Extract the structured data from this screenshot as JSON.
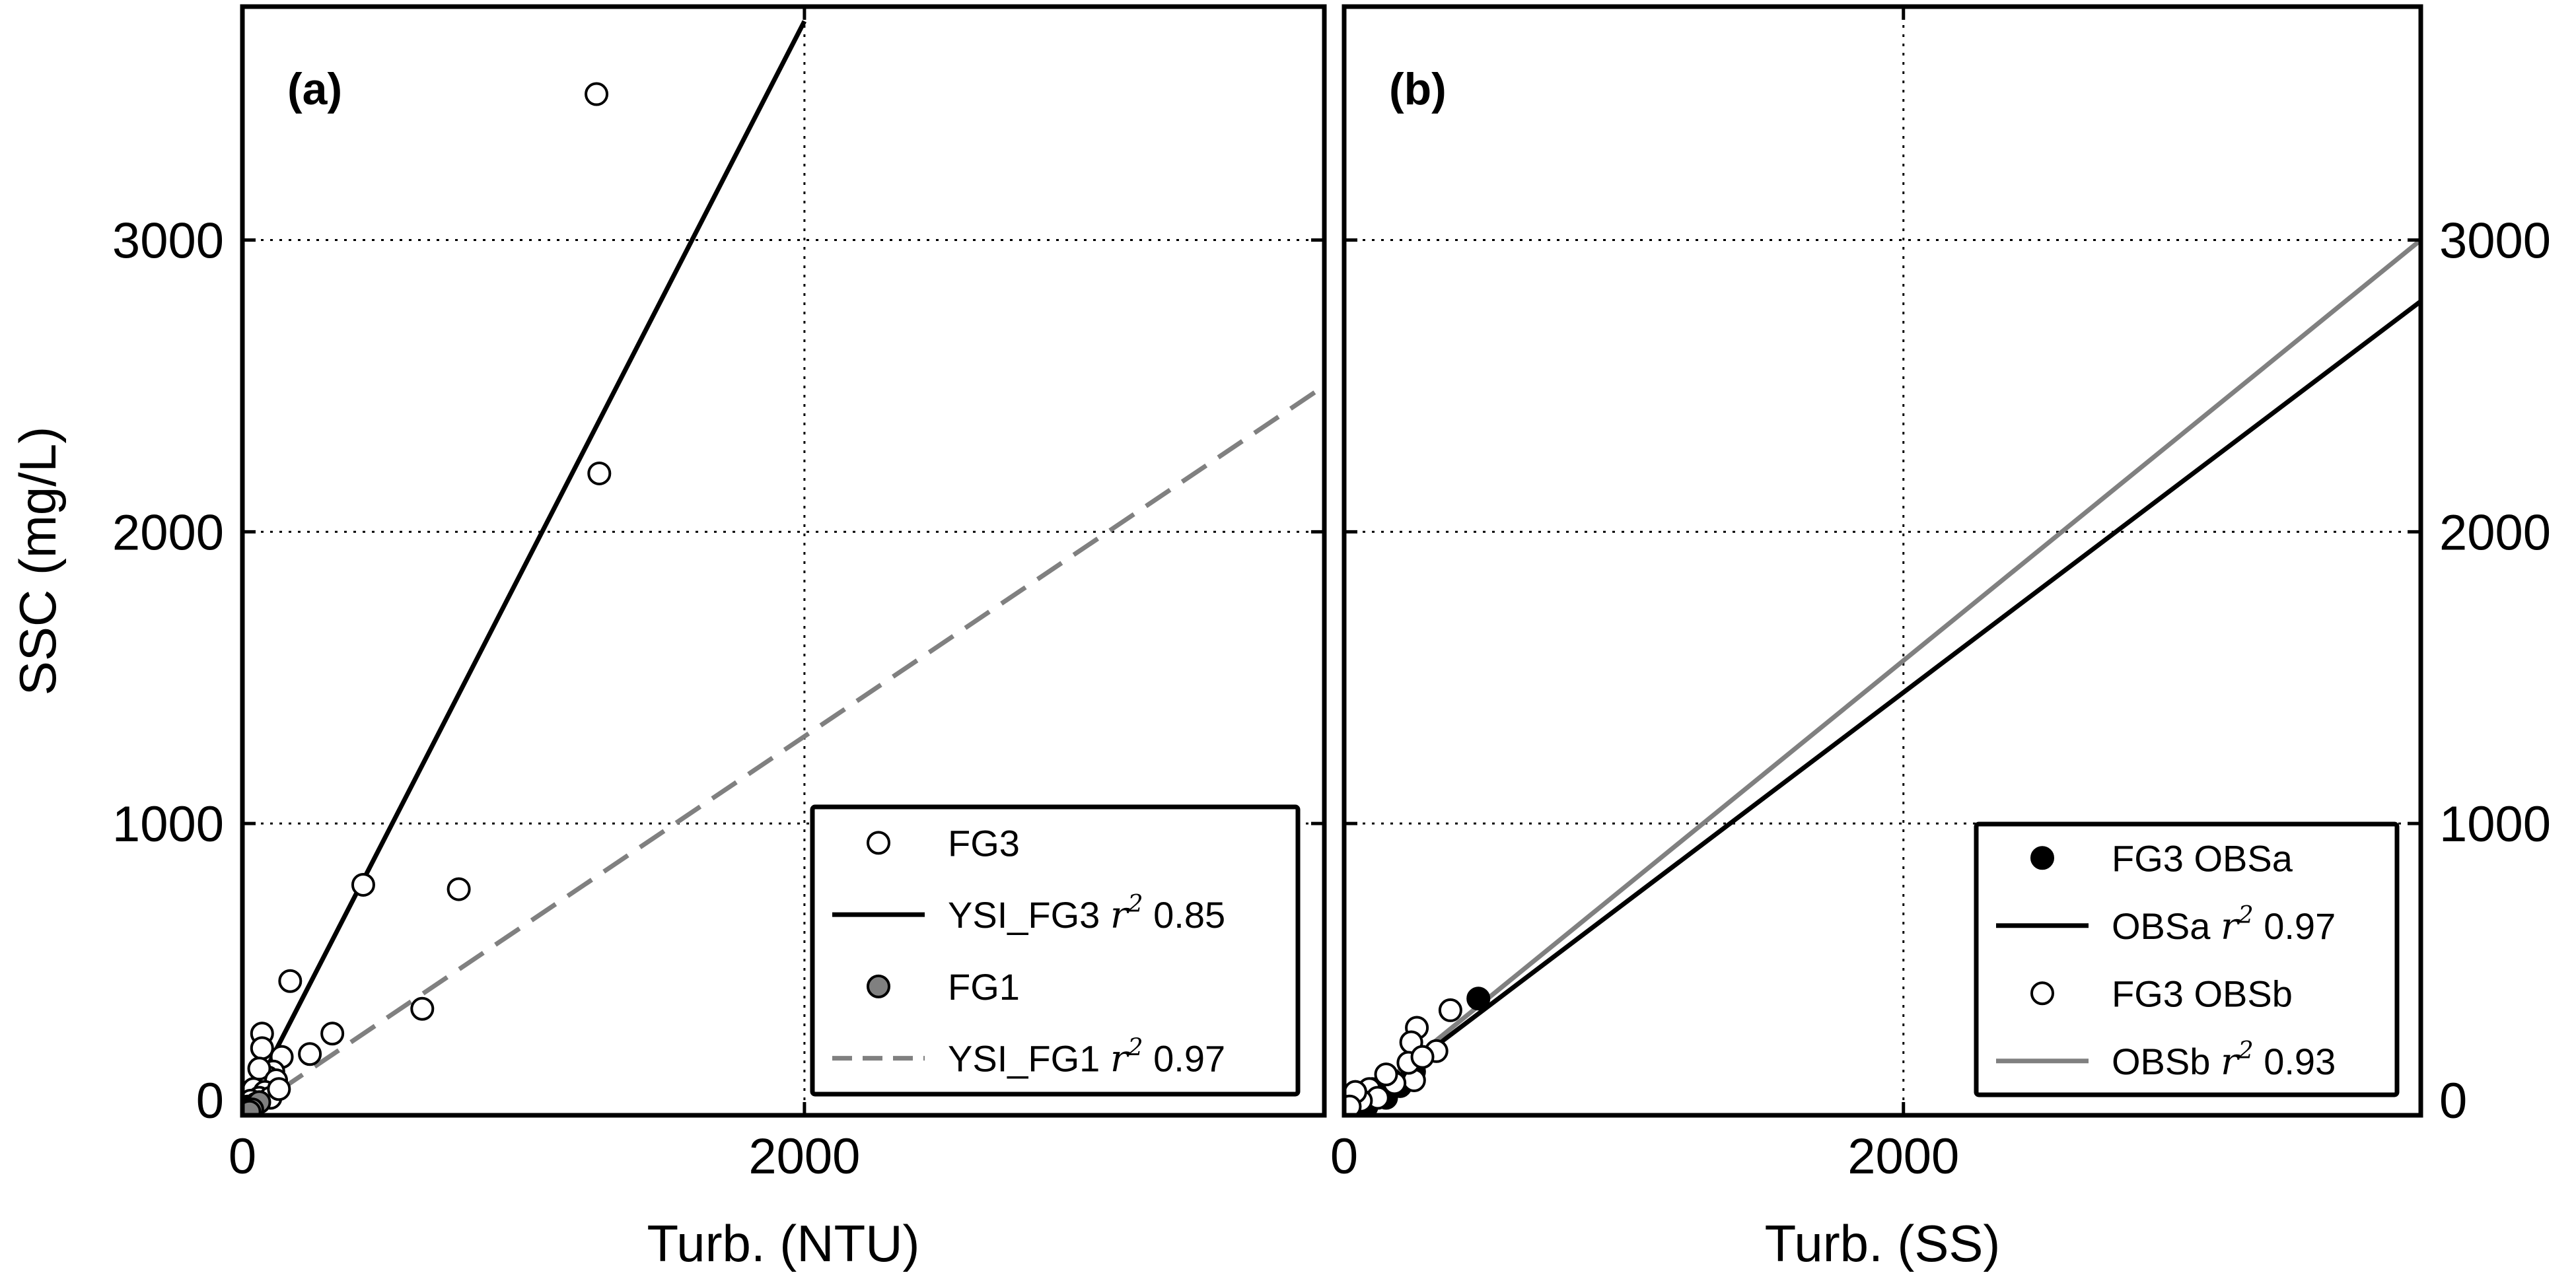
{
  "chart_data": [
    {
      "type": "scatter",
      "panel_label": "(a)",
      "xlabel": "Turb. (NTU)",
      "ylabel": "SSC (mg/L)",
      "xlim": [
        0,
        3850
      ],
      "ylim": [
        0,
        3800
      ],
      "xticks": [
        0,
        2000
      ],
      "yticks": [
        0,
        1000,
        2000,
        3000
      ],
      "grid": true,
      "legend_position": "lower-right",
      "series": [
        {
          "name": "FG3",
          "kind": "points",
          "marker": "open-circle",
          "color": "#000000",
          "points": [
            [
              1260,
              3500
            ],
            [
              1270,
              2200
            ],
            [
              430,
              790
            ],
            [
              770,
              775
            ],
            [
              170,
              460
            ],
            [
              640,
              365
            ],
            [
              320,
              280
            ],
            [
              70,
              280
            ],
            [
              240,
              210
            ],
            [
              140,
              200
            ],
            [
              70,
              230
            ],
            [
              110,
              150
            ],
            [
              90,
              130
            ],
            [
              60,
              160
            ],
            [
              120,
              120
            ],
            [
              40,
              90
            ],
            [
              80,
              80
            ],
            [
              60,
              60
            ],
            [
              30,
              50
            ],
            [
              20,
              30
            ],
            [
              50,
              40
            ],
            [
              100,
              60
            ],
            [
              130,
              90
            ]
          ]
        },
        {
          "name": "YSI_FG3 r² 0.85",
          "kind": "line",
          "color": "#000000",
          "dash": "solid",
          "points": [
            [
              0,
              0
            ],
            [
              2000,
              3750
            ]
          ]
        },
        {
          "name": "FG1",
          "kind": "points",
          "marker": "filled-circle",
          "color": "#808080",
          "points": [
            [
              10,
              10
            ],
            [
              20,
              15
            ],
            [
              30,
              25
            ],
            [
              40,
              30
            ],
            [
              50,
              40
            ],
            [
              60,
              45
            ],
            [
              35,
              20
            ],
            [
              25,
              12
            ]
          ]
        },
        {
          "name": "YSI_FG1 r² 0.97",
          "kind": "line",
          "color": "#808080",
          "dash": "dashed",
          "points": [
            [
              0,
              0
            ],
            [
              3850,
              2500
            ]
          ]
        }
      ]
    },
    {
      "type": "scatter",
      "panel_label": "(b)",
      "xlabel": "Turb. (SS)",
      "ylabel": "",
      "xlim": [
        0,
        3850
      ],
      "ylim": [
        0,
        3800
      ],
      "xticks": [
        0,
        2000
      ],
      "yticks": [
        0,
        1000,
        2000,
        3000
      ],
      "grid": true,
      "legend_position": "lower-right",
      "series": [
        {
          "name": "FG3 OBSa",
          "kind": "points",
          "marker": "filled-circle",
          "color": "#000000",
          "points": [
            [
              480,
              400
            ],
            [
              20,
              60
            ],
            [
              40,
              40
            ],
            [
              60,
              70
            ],
            [
              90,
              50
            ],
            [
              120,
              80
            ],
            [
              150,
              60
            ],
            [
              200,
              100
            ],
            [
              250,
              150
            ],
            [
              80,
              30
            ],
            [
              30,
              20
            ],
            [
              100,
              90
            ],
            [
              170,
              120
            ],
            [
              10,
              10
            ]
          ]
        },
        {
          "name": "OBSa r² 0.97",
          "kind": "line",
          "color": "#000000",
          "dash": "solid",
          "points": [
            [
              0,
              0
            ],
            [
              3850,
              2790
            ]
          ]
        },
        {
          "name": "FG3 OBSb",
          "kind": "points",
          "marker": "open-circle",
          "color": "#000000",
          "points": [
            [
              380,
              360
            ],
            [
              260,
              300
            ],
            [
              240,
              250
            ],
            [
              330,
              220
            ],
            [
              250,
              120
            ],
            [
              230,
              180
            ],
            [
              90,
              90
            ],
            [
              120,
              60
            ],
            [
              60,
              50
            ],
            [
              40,
              80
            ],
            [
              180,
              110
            ],
            [
              150,
              140
            ],
            [
              20,
              30
            ],
            [
              280,
              200
            ]
          ]
        },
        {
          "name": "OBSb r² 0.93",
          "kind": "line",
          "color": "#808080",
          "dash": "solid",
          "points": [
            [
              0,
              0
            ],
            [
              3850,
              3000
            ]
          ]
        }
      ]
    }
  ]
}
